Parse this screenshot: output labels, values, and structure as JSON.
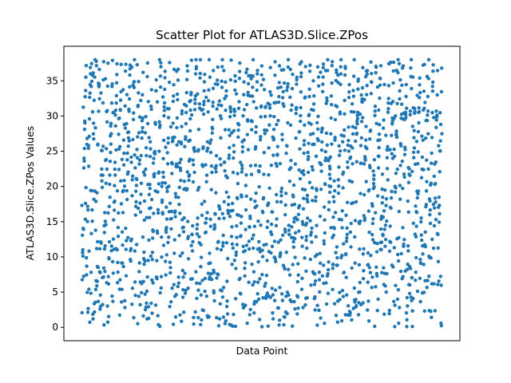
{
  "chart_data": {
    "type": "scatter",
    "title": "Scatter Plot for ATLAS3D.Slice.ZPos",
    "xlabel": "Data Point",
    "ylabel": "ATLAS3D.Slice.ZPos Values",
    "ylim": [
      -1.9,
      39.9
    ],
    "y_ticks": [
      0,
      5,
      10,
      15,
      20,
      25,
      30,
      35
    ],
    "x_ticks_shown": false,
    "grid": false,
    "marker_color": "#1f77b4",
    "series": [
      {
        "pattern": "repeating ascending runs of Z positions from 0 to about 38; each run samples the range irregularly",
        "point_count": 2000,
        "y_min": 0,
        "y_max": 38,
        "run_count": 82
      }
    ]
  }
}
